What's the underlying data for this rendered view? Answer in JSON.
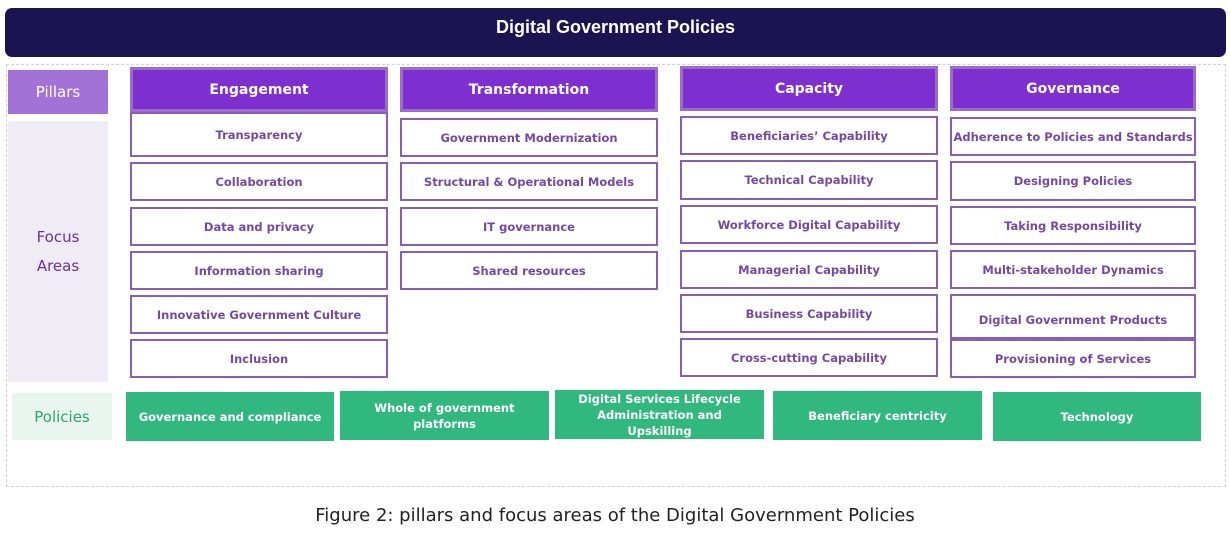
{
  "title": "Digital Government Policies",
  "labels": {
    "pillars": "Pillars",
    "focus_areas": "Focus\nAreas",
    "policies": "Policies"
  },
  "pillars": [
    {
      "name": "Engagement",
      "areas": [
        "Transparency",
        "Collaboration",
        "Data and privacy",
        "Information sharing",
        "Innovative Government Culture",
        "Inclusion"
      ]
    },
    {
      "name": "Transformation",
      "areas": [
        "Government Modernization",
        "Structural & Operational Models",
        "IT governance",
        "Shared resources"
      ]
    },
    {
      "name": "Capacity",
      "areas": [
        "Beneficiaries’ Capability",
        "Technical Capability",
        "Workforce Digital Capability",
        "Managerial Capability",
        "Business Capability",
        "Cross-cutting Capability"
      ]
    },
    {
      "name": "Governance",
      "areas": [
        "Adherence to Policies and Standards",
        "Designing Policies",
        "Taking Responsibility",
        "Multi-stakeholder Dynamics",
        "Digital Government Products",
        "Provisioning of Services"
      ]
    }
  ],
  "policies": [
    "Governance and compliance",
    "Whole of government platforms",
    "Digital Services Lifecycle Administration and Upskilling",
    "Beneficiary centricity",
    "Technology"
  ],
  "caption": "Figure 2: pillars and focus areas of the Digital Government Policies",
  "colors": {
    "banner": "#1c1450",
    "pillar": "#7e2fd0",
    "pillars_label": "#a272d6",
    "area_border": "#8a5fb3",
    "area_text": "#7548a6",
    "policy": "#31b87e"
  }
}
